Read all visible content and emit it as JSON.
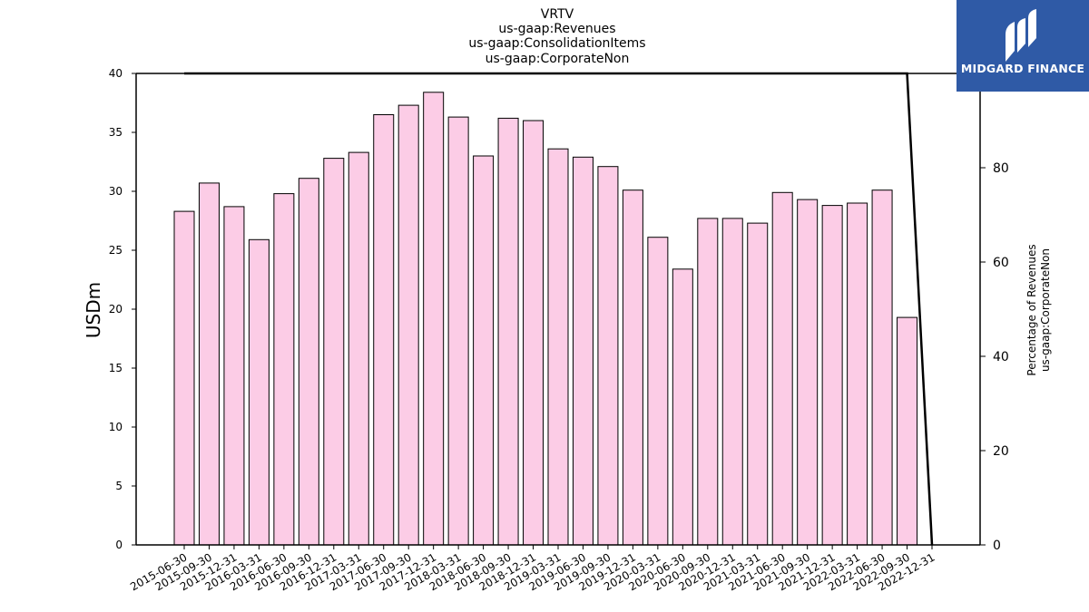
{
  "chart_data": {
    "type": "bar",
    "title_lines": [
      "VRTV",
      "us-gaap:Revenues",
      "us-gaap:ConsolidationItems",
      "us-gaap:CorporateNon"
    ],
    "ylabel": "USDm",
    "y2label_lines": [
      "Percentage of Revenues",
      "us-gaap:CorporateNon"
    ],
    "ylim": [
      0,
      40
    ],
    "y_ticks": [
      0,
      5,
      10,
      15,
      20,
      25,
      30,
      35,
      40
    ],
    "y2lim": [
      0,
      100
    ],
    "y2_ticks": [
      0,
      20,
      40,
      60,
      80
    ],
    "categories": [
      "2015-06-30",
      "2015-09-30",
      "2015-12-31",
      "2016-03-31",
      "2016-06-30",
      "2016-09-30",
      "2016-12-31",
      "2017-03-31",
      "2017-06-30",
      "2017-09-30",
      "2017-12-31",
      "2018-03-31",
      "2018-06-30",
      "2018-09-30",
      "2018-12-31",
      "2019-03-31",
      "2019-06-30",
      "2019-09-30",
      "2019-12-31",
      "2020-03-31",
      "2020-06-30",
      "2020-09-30",
      "2020-12-31",
      "2021-03-31",
      "2021-06-30",
      "2021-09-30",
      "2021-12-31",
      "2022-03-31",
      "2022-06-30",
      "2022-09-30",
      "2022-12-31"
    ],
    "series": [
      {
        "type": "bar",
        "axis": "left",
        "color": "#fccce6",
        "edgecolor": "#000000",
        "values": [
          28.3,
          30.7,
          28.7,
          25.9,
          29.8,
          31.1,
          32.8,
          33.3,
          36.5,
          37.3,
          38.4,
          36.3,
          33.0,
          36.2,
          36.0,
          33.6,
          32.9,
          32.1,
          30.1,
          26.1,
          23.4,
          27.7,
          27.7,
          27.3,
          29.9,
          29.3,
          28.8,
          29.0,
          30.1,
          19.3,
          null
        ]
      },
      {
        "type": "line",
        "axis": "right",
        "color": "#000000",
        "values": [
          100,
          100,
          100,
          100,
          100,
          100,
          100,
          100,
          100,
          100,
          100,
          100,
          100,
          100,
          100,
          100,
          100,
          100,
          100,
          100,
          100,
          100,
          100,
          100,
          100,
          100,
          100,
          100,
          100,
          100,
          0
        ]
      }
    ],
    "grid": false,
    "legend": "none"
  },
  "logo": {
    "text": "MIDGARD FINANCE",
    "bg_color": "#2f5aa6"
  }
}
